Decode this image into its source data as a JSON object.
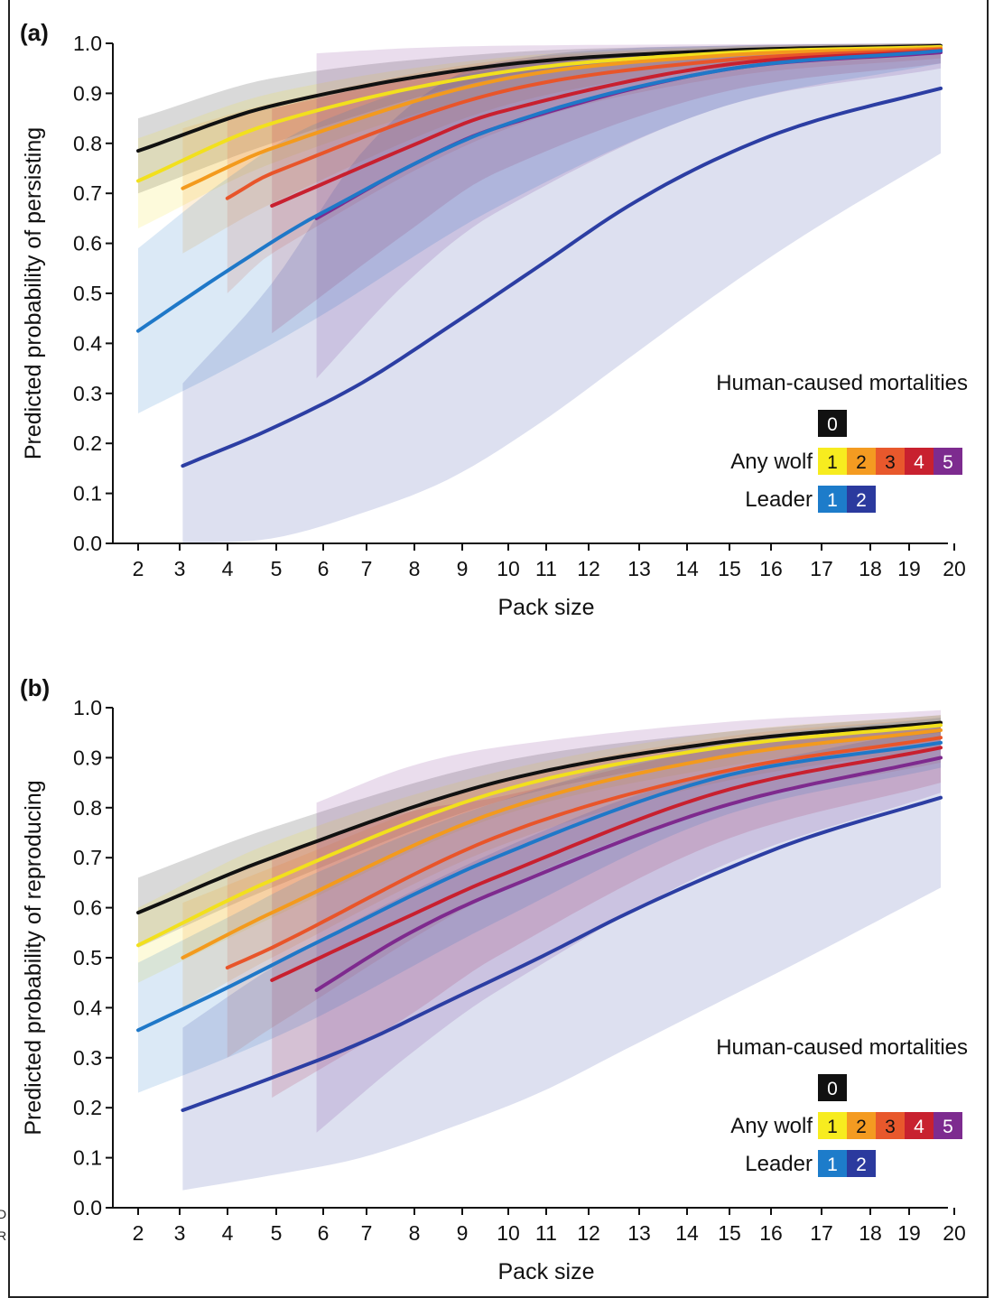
{
  "edge_text": [
    "D",
    "R"
  ],
  "chart_data": [
    {
      "type": "line",
      "panel_label": "(a)",
      "title": "",
      "xlabel": "Pack size",
      "ylabel": "Predicted probability of persisting",
      "xlim": [
        2,
        20
      ],
      "ylim": [
        0,
        1
      ],
      "x_ticks": [
        "2",
        "3",
        "4",
        "5",
        "6",
        "7",
        "8",
        "9",
        "10",
        "11",
        "12",
        "13",
        "14",
        "15",
        "16",
        "17",
        "18",
        "19",
        "20"
      ],
      "y_ticks": [
        "0.0",
        "0.1",
        "0.2",
        "0.3",
        "0.4",
        "0.5",
        "0.6",
        "0.7",
        "0.8",
        "0.9",
        "1.0"
      ],
      "legend": {
        "title": "Human-caused mortalities",
        "groups": [
          {
            "label": "",
            "items": [
              {
                "text": "0",
                "series": "s0"
              }
            ]
          },
          {
            "label": "Any wolf",
            "items": [
              {
                "text": "1",
                "series": "a1"
              },
              {
                "text": "2",
                "series": "a2"
              },
              {
                "text": "3",
                "series": "a3"
              },
              {
                "text": "4",
                "series": "a4"
              },
              {
                "text": "5",
                "series": "a5"
              }
            ]
          },
          {
            "label": "Leader",
            "items": [
              {
                "text": "1",
                "series": "l1"
              },
              {
                "text": "2",
                "series": "l2"
              }
            ]
          }
        ],
        "position": "bottom-right"
      },
      "series": [
        {
          "id": "s0",
          "color": "#111111",
          "x_start": 2,
          "x": [
            2,
            5,
            10,
            15,
            20
          ],
          "y": [
            0.785,
            0.875,
            0.955,
            0.985,
            0.995
          ],
          "lower": [
            0.7,
            0.8,
            0.93,
            0.975,
            0.99
          ],
          "upper": [
            0.85,
            0.93,
            0.98,
            0.995,
            1.0
          ]
        },
        {
          "id": "a1",
          "color": "#f2e01d",
          "x_start": 2,
          "x": [
            2,
            5,
            10,
            15,
            20
          ],
          "y": [
            0.725,
            0.84,
            0.94,
            0.98,
            0.993
          ],
          "lower": [
            0.63,
            0.76,
            0.9,
            0.96,
            0.985
          ],
          "upper": [
            0.81,
            0.9,
            0.97,
            0.993,
            1.0
          ]
        },
        {
          "id": "a2",
          "color": "#f39a1d",
          "x_start": 3,
          "x": [
            3,
            5,
            10,
            15,
            20
          ],
          "y": [
            0.71,
            0.79,
            0.925,
            0.975,
            0.99
          ],
          "lower": [
            0.58,
            0.68,
            0.87,
            0.95,
            0.98
          ],
          "upper": [
            0.83,
            0.88,
            0.965,
            0.99,
            1.0
          ]
        },
        {
          "id": "a3",
          "color": "#e8552a",
          "x_start": 4,
          "x": [
            4,
            5,
            10,
            15,
            20
          ],
          "y": [
            0.69,
            0.74,
            0.9,
            0.965,
            0.988
          ],
          "lower": [
            0.5,
            0.58,
            0.82,
            0.93,
            0.97
          ],
          "upper": [
            0.85,
            0.87,
            0.96,
            0.985,
            0.998
          ]
        },
        {
          "id": "a4",
          "color": "#c8202f",
          "x_start": 5,
          "x": [
            5,
            8,
            10,
            15,
            20
          ],
          "y": [
            0.675,
            0.79,
            0.86,
            0.955,
            0.985
          ],
          "lower": [
            0.42,
            0.62,
            0.74,
            0.9,
            0.96
          ],
          "upper": [
            0.87,
            0.93,
            0.955,
            0.985,
            0.998
          ]
        },
        {
          "id": "a5",
          "color": "#7e2a8e",
          "x_start": 6,
          "x": [
            6,
            8,
            10,
            15,
            20
          ],
          "y": [
            0.65,
            0.75,
            0.83,
            0.945,
            0.982
          ],
          "lower": [
            0.33,
            0.52,
            0.66,
            0.87,
            0.95
          ],
          "upper": [
            0.98,
            0.99,
            0.995,
            0.998,
            1.0
          ]
        },
        {
          "id": "l1",
          "color": "#1f78c8",
          "x_start": 2,
          "x": [
            2,
            4,
            6,
            10,
            15,
            20
          ],
          "y": [
            0.425,
            0.545,
            0.655,
            0.83,
            0.945,
            0.985
          ],
          "lower": [
            0.26,
            0.35,
            0.45,
            0.67,
            0.87,
            0.96
          ],
          "upper": [
            0.59,
            0.73,
            0.84,
            0.95,
            0.985,
            0.997
          ]
        },
        {
          "id": "l2",
          "color": "#2c3ea3",
          "x_start": 3,
          "x": [
            3,
            5,
            7,
            9,
            11,
            13,
            15,
            17,
            20
          ],
          "y": [
            0.155,
            0.23,
            0.32,
            0.435,
            0.555,
            0.675,
            0.77,
            0.84,
            0.91
          ],
          "lower": [
            0.0,
            0.01,
            0.06,
            0.13,
            0.24,
            0.37,
            0.5,
            0.62,
            0.78
          ],
          "upper": [
            0.32,
            0.52,
            0.78,
            0.93,
            0.975,
            0.99,
            0.995,
            0.998,
            1.0
          ]
        }
      ]
    },
    {
      "type": "line",
      "panel_label": "(b)",
      "title": "",
      "xlabel": "Pack size",
      "ylabel": "Predicted probability of reproducing",
      "xlim": [
        2,
        20
      ],
      "ylim": [
        0,
        1
      ],
      "x_ticks": [
        "2",
        "3",
        "4",
        "5",
        "6",
        "7",
        "8",
        "9",
        "10",
        "11",
        "12",
        "13",
        "14",
        "15",
        "16",
        "17",
        "18",
        "19",
        "20"
      ],
      "y_ticks": [
        "0.0",
        "0.1",
        "0.2",
        "0.3",
        "0.4",
        "0.5",
        "0.6",
        "0.7",
        "0.8",
        "0.9",
        "1.0"
      ],
      "legend": {
        "title": "Human-caused mortalities",
        "groups": [
          {
            "label": "",
            "items": [
              {
                "text": "0",
                "series": "s0"
              }
            ]
          },
          {
            "label": "Any wolf",
            "items": [
              {
                "text": "1",
                "series": "a1"
              },
              {
                "text": "2",
                "series": "a2"
              },
              {
                "text": "3",
                "series": "a3"
              },
              {
                "text": "4",
                "series": "a4"
              },
              {
                "text": "5",
                "series": "a5"
              }
            ]
          },
          {
            "label": "Leader",
            "items": [
              {
                "text": "1",
                "series": "l1"
              },
              {
                "text": "2",
                "series": "l2"
              }
            ]
          }
        ],
        "position": "bottom-right"
      },
      "series": [
        {
          "id": "s0",
          "color": "#111111",
          "x_start": 2,
          "x": [
            2,
            5,
            10,
            15,
            20
          ],
          "y": [
            0.59,
            0.7,
            0.85,
            0.93,
            0.97
          ],
          "lower": [
            0.52,
            0.64,
            0.81,
            0.9,
            0.95
          ],
          "upper": [
            0.66,
            0.76,
            0.89,
            0.95,
            0.985
          ]
        },
        {
          "id": "a1",
          "color": "#f2e01d",
          "x_start": 2,
          "x": [
            2,
            5,
            10,
            15,
            20
          ],
          "y": [
            0.525,
            0.655,
            0.83,
            0.92,
            0.965
          ],
          "lower": [
            0.45,
            0.58,
            0.78,
            0.88,
            0.94
          ],
          "upper": [
            0.6,
            0.73,
            0.87,
            0.95,
            0.985
          ]
        },
        {
          "id": "a2",
          "color": "#f39a1d",
          "x_start": 3,
          "x": [
            3,
            5,
            10,
            15,
            20
          ],
          "y": [
            0.5,
            0.59,
            0.79,
            0.9,
            0.955
          ],
          "lower": [
            0.4,
            0.5,
            0.72,
            0.85,
            0.92
          ],
          "upper": [
            0.61,
            0.68,
            0.85,
            0.94,
            0.98
          ]
        },
        {
          "id": "a3",
          "color": "#e8552a",
          "x_start": 4,
          "x": [
            4,
            5,
            10,
            15,
            20
          ],
          "y": [
            0.48,
            0.52,
            0.74,
            0.87,
            0.94
          ],
          "lower": [
            0.3,
            0.36,
            0.63,
            0.8,
            0.89
          ],
          "upper": [
            0.66,
            0.7,
            0.85,
            0.93,
            0.97
          ]
        },
        {
          "id": "a4",
          "color": "#c8202f",
          "x_start": 5,
          "x": [
            5,
            8,
            10,
            15,
            20
          ],
          "y": [
            0.455,
            0.58,
            0.66,
            0.83,
            0.92
          ],
          "lower": [
            0.22,
            0.38,
            0.5,
            0.73,
            0.85
          ],
          "upper": [
            0.7,
            0.79,
            0.82,
            0.92,
            0.97
          ]
        },
        {
          "id": "a5",
          "color": "#7e2a8e",
          "x_start": 6,
          "x": [
            6,
            8,
            10,
            15,
            20
          ],
          "y": [
            0.435,
            0.545,
            0.63,
            0.8,
            0.9
          ],
          "lower": [
            0.15,
            0.3,
            0.43,
            0.68,
            0.83
          ],
          "upper": [
            0.81,
            0.88,
            0.92,
            0.97,
            0.995
          ]
        },
        {
          "id": "l1",
          "color": "#1f78c8",
          "x_start": 2,
          "x": [
            2,
            4,
            6,
            10,
            15,
            20
          ],
          "y": [
            0.355,
            0.44,
            0.53,
            0.7,
            0.86,
            0.93
          ],
          "lower": [
            0.23,
            0.3,
            0.38,
            0.57,
            0.78,
            0.88
          ],
          "upper": [
            0.49,
            0.58,
            0.67,
            0.81,
            0.93,
            0.98
          ]
        },
        {
          "id": "l2",
          "color": "#2c3ea3",
          "x_start": 3,
          "x": [
            3,
            5,
            7,
            9,
            11,
            13,
            15,
            17,
            20
          ],
          "y": [
            0.195,
            0.26,
            0.33,
            0.415,
            0.5,
            0.59,
            0.67,
            0.74,
            0.82
          ],
          "lower": [
            0.035,
            0.065,
            0.1,
            0.16,
            0.23,
            0.32,
            0.41,
            0.5,
            0.64
          ],
          "upper": [
            0.36,
            0.48,
            0.58,
            0.67,
            0.75,
            0.82,
            0.87,
            0.91,
            0.96
          ]
        }
      ]
    }
  ]
}
